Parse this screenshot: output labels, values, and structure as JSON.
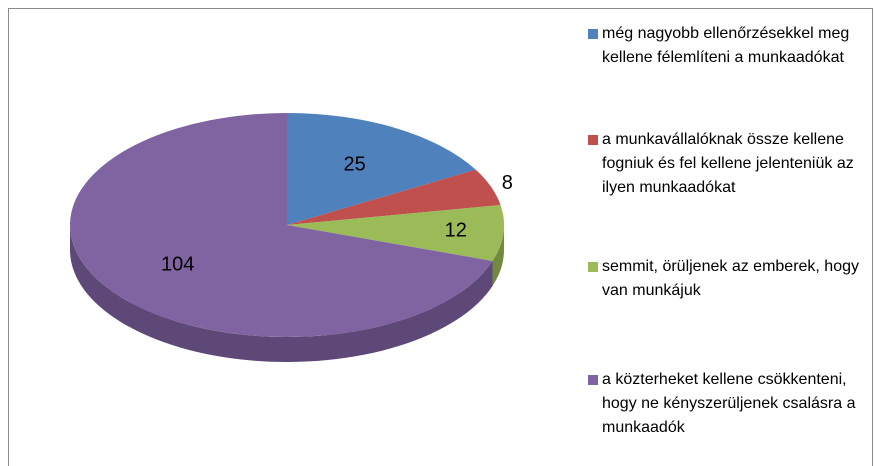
{
  "chart_data": {
    "type": "pie",
    "three_d": true,
    "categories": [
      "még nagyobb ellenőrzésekkel meg kellene félemlíteni a munkaadókat",
      "a munkavállalóknak össze kellene fogniuk és fel kellene jelenteniük az ilyen munkaadókat",
      "semmit, örüljenek az emberek, hogy van munkájuk",
      "a közterheket kellene csökkenteni, hogy ne kényszerüljenek csalásra a munkaadók"
    ],
    "values": [
      25,
      8,
      12,
      104
    ],
    "colors": [
      "#4f81bd",
      "#c0504d",
      "#9bbb59",
      "#8064a2"
    ],
    "side_colors": [
      "#3a6090",
      "#8f3b39",
      "#718a40",
      "#5d4878"
    ],
    "legend": "right"
  }
}
